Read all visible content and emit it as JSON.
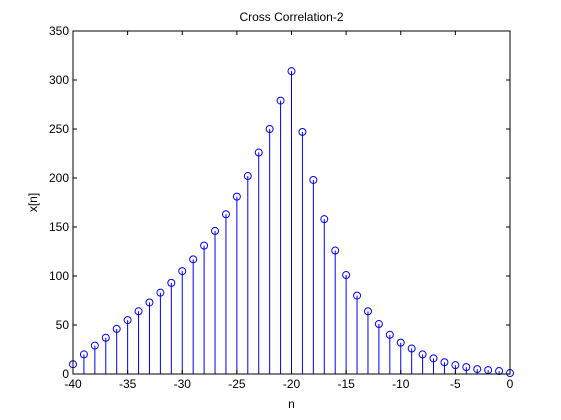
{
  "chart_data": {
    "type": "stem",
    "title": "Cross Correlation-2",
    "xlabel": "n",
    "ylabel": "x[n]",
    "xlim": [
      -40,
      0
    ],
    "ylim": [
      0,
      350
    ],
    "xticks": [
      -40,
      -35,
      -30,
      -25,
      -20,
      -15,
      -10,
      -5,
      0
    ],
    "yticks": [
      0,
      50,
      100,
      150,
      200,
      250,
      300,
      350
    ],
    "grid": false,
    "marker": "circle",
    "color": "#0000ff",
    "x": [
      -40,
      -39,
      -38,
      -37,
      -36,
      -35,
      -34,
      -33,
      -32,
      -31,
      -30,
      -29,
      -28,
      -27,
      -26,
      -25,
      -24,
      -23,
      -22,
      -21,
      -20,
      -19,
      -18,
      -17,
      -16,
      -15,
      -14,
      -13,
      -12,
      -11,
      -10,
      -9,
      -8,
      -7,
      -6,
      -5,
      -4,
      -3,
      -2,
      -1,
      0
    ],
    "y": [
      10,
      20,
      29,
      37,
      46,
      55,
      64,
      73,
      83,
      93,
      105,
      117,
      131,
      146,
      163,
      181,
      202,
      226,
      250,
      279,
      309,
      247,
      198,
      158,
      126,
      101,
      80,
      64,
      51,
      40,
      32,
      26,
      20,
      16,
      12,
      9,
      7,
      5,
      4,
      3,
      1
    ]
  }
}
